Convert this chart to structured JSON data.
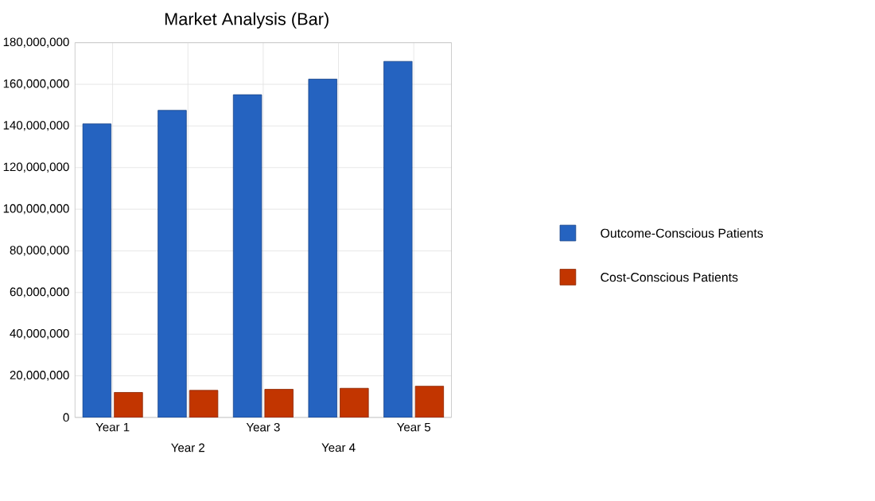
{
  "chart_data": {
    "type": "bar",
    "title": "Market Analysis (Bar)",
    "categories": [
      "Year 1",
      "Year 2",
      "Year 3",
      "Year 4",
      "Year 5"
    ],
    "series": [
      {
        "name": "Outcome-Conscious Patients",
        "color": "#2563c0",
        "values": [
          141000000,
          147500000,
          155000000,
          162500000,
          171000000
        ]
      },
      {
        "name": "Cost-Conscious Patients",
        "color": "#c23500",
        "values": [
          12000000,
          13000000,
          13500000,
          14000000,
          15000000
        ]
      }
    ],
    "ylim": [
      0,
      180000000
    ],
    "yticks": [
      {
        "value": 0,
        "label": "0"
      },
      {
        "value": 20000000,
        "label": "20,000,000"
      },
      {
        "value": 40000000,
        "label": "40,000,000"
      },
      {
        "value": 60000000,
        "label": "60,000,000"
      },
      {
        "value": 80000000,
        "label": "80,000,000"
      },
      {
        "value": 100000000,
        "label": "100,000,000"
      },
      {
        "value": 120000000,
        "label": "120,000,000"
      },
      {
        "value": 140000000,
        "label": "140,000,000"
      },
      {
        "value": 160000000,
        "label": "160,000,000"
      },
      {
        "value": 180000000,
        "label": "180,000,000"
      }
    ],
    "grid": true,
    "legend": "right"
  }
}
